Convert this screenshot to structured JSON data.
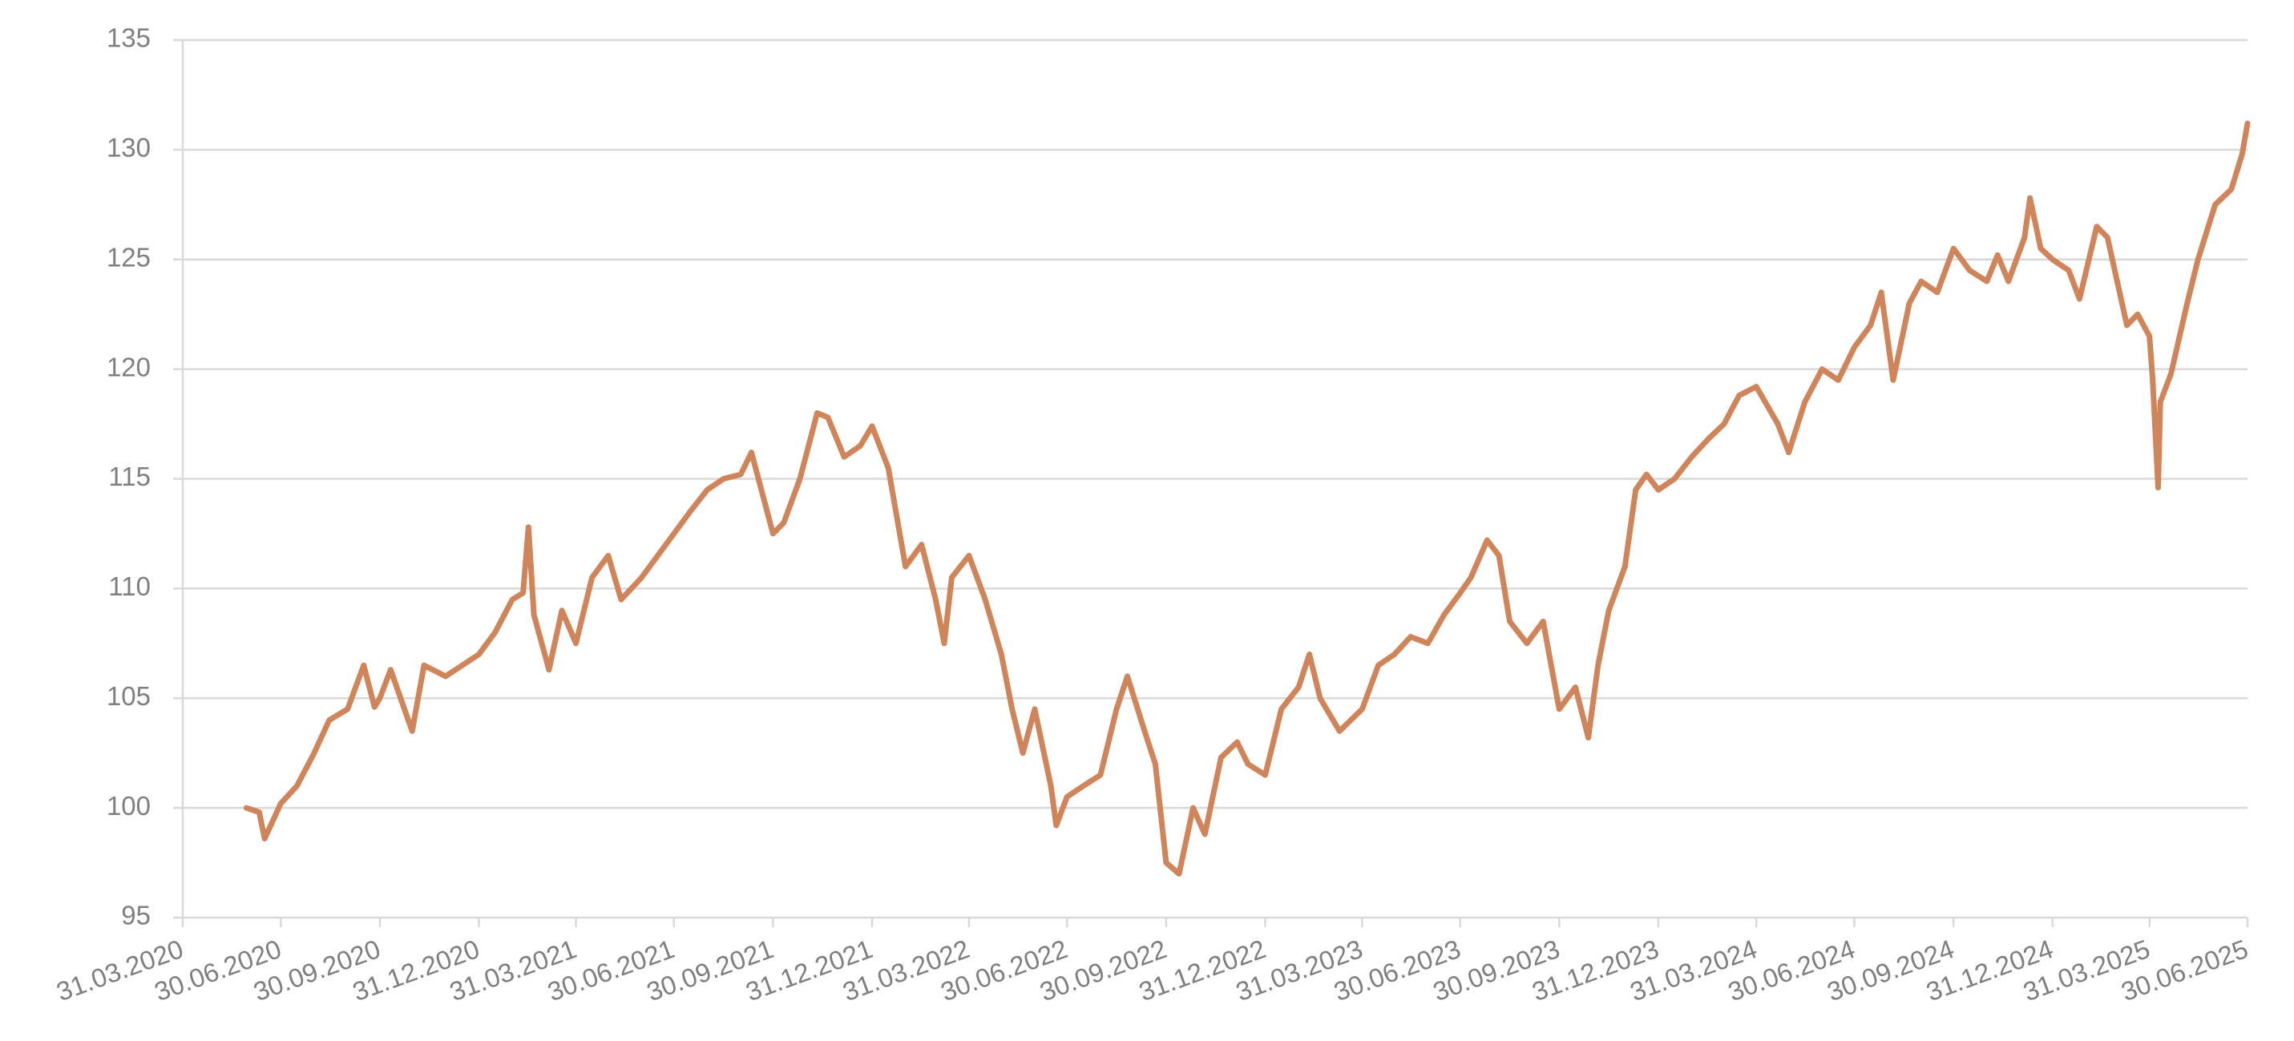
{
  "chart_data": {
    "type": "line",
    "color": "#d0845a",
    "grid": true,
    "ylim": [
      95,
      135
    ],
    "yticks": [
      95,
      100,
      105,
      110,
      115,
      120,
      125,
      130,
      135
    ],
    "xlim": [
      "31.03.2020",
      "30.06.2025"
    ],
    "xticks": [
      "31.03.2020",
      "30.06.2020",
      "30.09.2020",
      "31.12.2020",
      "31.03.2021",
      "30.06.2021",
      "30.09.2021",
      "31.12.2021",
      "31.03.2022",
      "30.06.2022",
      "30.09.2022",
      "31.12.2022",
      "31.03.2023",
      "30.06.2023",
      "30.09.2023",
      "31.12.2023",
      "31.03.2024",
      "30.06.2024",
      "30.09.2024",
      "31.12.2024",
      "31.03.2025",
      "30.06.2025"
    ],
    "x": [
      "29.05.2020",
      "10.06.2020",
      "15.06.2020",
      "30.06.2020",
      "15.07.2020",
      "31.07.2020",
      "14.08.2020",
      "31.08.2020",
      "15.09.2020",
      "25.09.2020",
      "30.09.2020",
      "10.10.2020",
      "30.10.2020",
      "10.11.2020",
      "30.11.2020",
      "31.12.2020",
      "15.01.2021",
      "31.01.2021",
      "10.02.2021",
      "15.02.2021",
      "20.02.2021",
      "06.03.2021",
      "18.03.2021",
      "31.03.2021",
      "15.04.2021",
      "30.04.2021",
      "12.05.2021",
      "31.05.2021",
      "30.06.2021",
      "15.07.2021",
      "31.07.2021",
      "15.08.2021",
      "31.08.2021",
      "10.09.2021",
      "30.09.2021",
      "10.10.2021",
      "25.10.2021",
      "10.11.2021",
      "20.11.2021",
      "05.12.2021",
      "20.12.2021",
      "31.12.2021",
      "15.01.2022",
      "31.01.2022",
      "15.02.2022",
      "28.02.2022",
      "08.03.2022",
      "15.03.2022",
      "31.03.2022",
      "15.04.2022",
      "30.04.2022",
      "10.05.2022",
      "20.05.2022",
      "31.05.2022",
      "15.06.2022",
      "20.06.2022",
      "30.06.2022",
      "15.07.2022",
      "31.07.2022",
      "15.08.2022",
      "25.08.2022",
      "10.09.2022",
      "20.09.2022",
      "30.09.2022",
      "12.10.2022",
      "25.10.2022",
      "05.11.2022",
      "20.11.2022",
      "05.12.2022",
      "15.12.2022",
      "31.12.2022",
      "15.01.2023",
      "31.01.2023",
      "10.02.2023",
      "20.02.2023",
      "10.03.2023",
      "31.03.2023",
      "15.04.2023",
      "30.04.2023",
      "15.05.2023",
      "31.05.2023",
      "15.06.2023",
      "30.06.2023",
      "10.07.2023",
      "25.07.2023",
      "05.08.2023",
      "15.08.2023",
      "31.08.2023",
      "15.09.2023",
      "30.09.2023",
      "15.10.2023",
      "27.10.2023",
      "05.11.2023",
      "15.11.2023",
      "30.11.2023",
      "10.12.2023",
      "20.12.2023",
      "31.12.2023",
      "15.01.2024",
      "31.01.2024",
      "15.02.2024",
      "01.03.2024",
      "15.03.2024",
      "31.03.2024",
      "20.04.2024",
      "30.04.2024",
      "15.05.2024",
      "31.05.2024",
      "15.06.2024",
      "30.06.2024",
      "15.07.2024",
      "25.07.2024",
      "05.08.2024",
      "20.08.2024",
      "31.08.2024",
      "15.09.2024",
      "30.09.2024",
      "15.10.2024",
      "31.10.2024",
      "10.11.2024",
      "20.11.2024",
      "05.12.2024",
      "10.12.2024",
      "20.12.2024",
      "31.12.2024",
      "15.01.2025",
      "25.01.2025",
      "10.02.2025",
      "20.02.2025",
      "10.03.2025",
      "20.03.2025",
      "31.03.2025",
      "03.04.2025",
      "08.04.2025",
      "10.04.2025",
      "20.04.2025",
      "05.05.2025",
      "15.05.2025",
      "31.05.2025",
      "15.06.2025",
      "25.06.2025",
      "30.06.2025"
    ],
    "values": [
      100,
      99.8,
      98.6,
      100.2,
      101,
      102.5,
      104,
      104.5,
      106.5,
      104.6,
      105,
      106.3,
      103.5,
      106.5,
      106,
      107,
      108,
      109.5,
      109.8,
      112.8,
      108.8,
      106.3,
      109,
      107.5,
      110.5,
      111.5,
      109.5,
      110.5,
      112.5,
      113.5,
      114.5,
      115,
      115.2,
      116.2,
      112.5,
      113,
      115,
      118,
      117.8,
      116,
      116.5,
      117.4,
      115.5,
      111,
      112,
      109.5,
      107.5,
      110.5,
      111.5,
      109.5,
      107,
      104.5,
      102.5,
      104.5,
      101,
      99.2,
      100.5,
      101,
      101.5,
      104.5,
      106,
      103.5,
      102,
      97.5,
      97,
      100,
      98.8,
      102.3,
      103,
      102,
      101.5,
      104.5,
      105.5,
      107,
      105,
      103.5,
      104.5,
      106.5,
      107,
      107.8,
      107.5,
      108.8,
      109.8,
      110.5,
      112.2,
      111.5,
      108.5,
      107.5,
      108.5,
      104.5,
      105.5,
      103.2,
      106.5,
      109,
      111,
      114.5,
      115.2,
      114.5,
      115,
      116,
      116.8,
      117.5,
      118.8,
      119.2,
      117.5,
      116.2,
      118.5,
      120,
      119.5,
      121,
      122,
      123.5,
      119.5,
      123,
      124,
      123.5,
      125.5,
      124.5,
      124,
      125.2,
      124,
      126,
      127.8,
      125.5,
      125,
      124.5,
      123.2,
      126.5,
      126,
      122,
      122.5,
      121.5,
      119.5,
      114.6,
      118.5,
      119.8,
      123,
      125,
      127.5,
      128.2,
      129.8,
      131.2
    ]
  }
}
